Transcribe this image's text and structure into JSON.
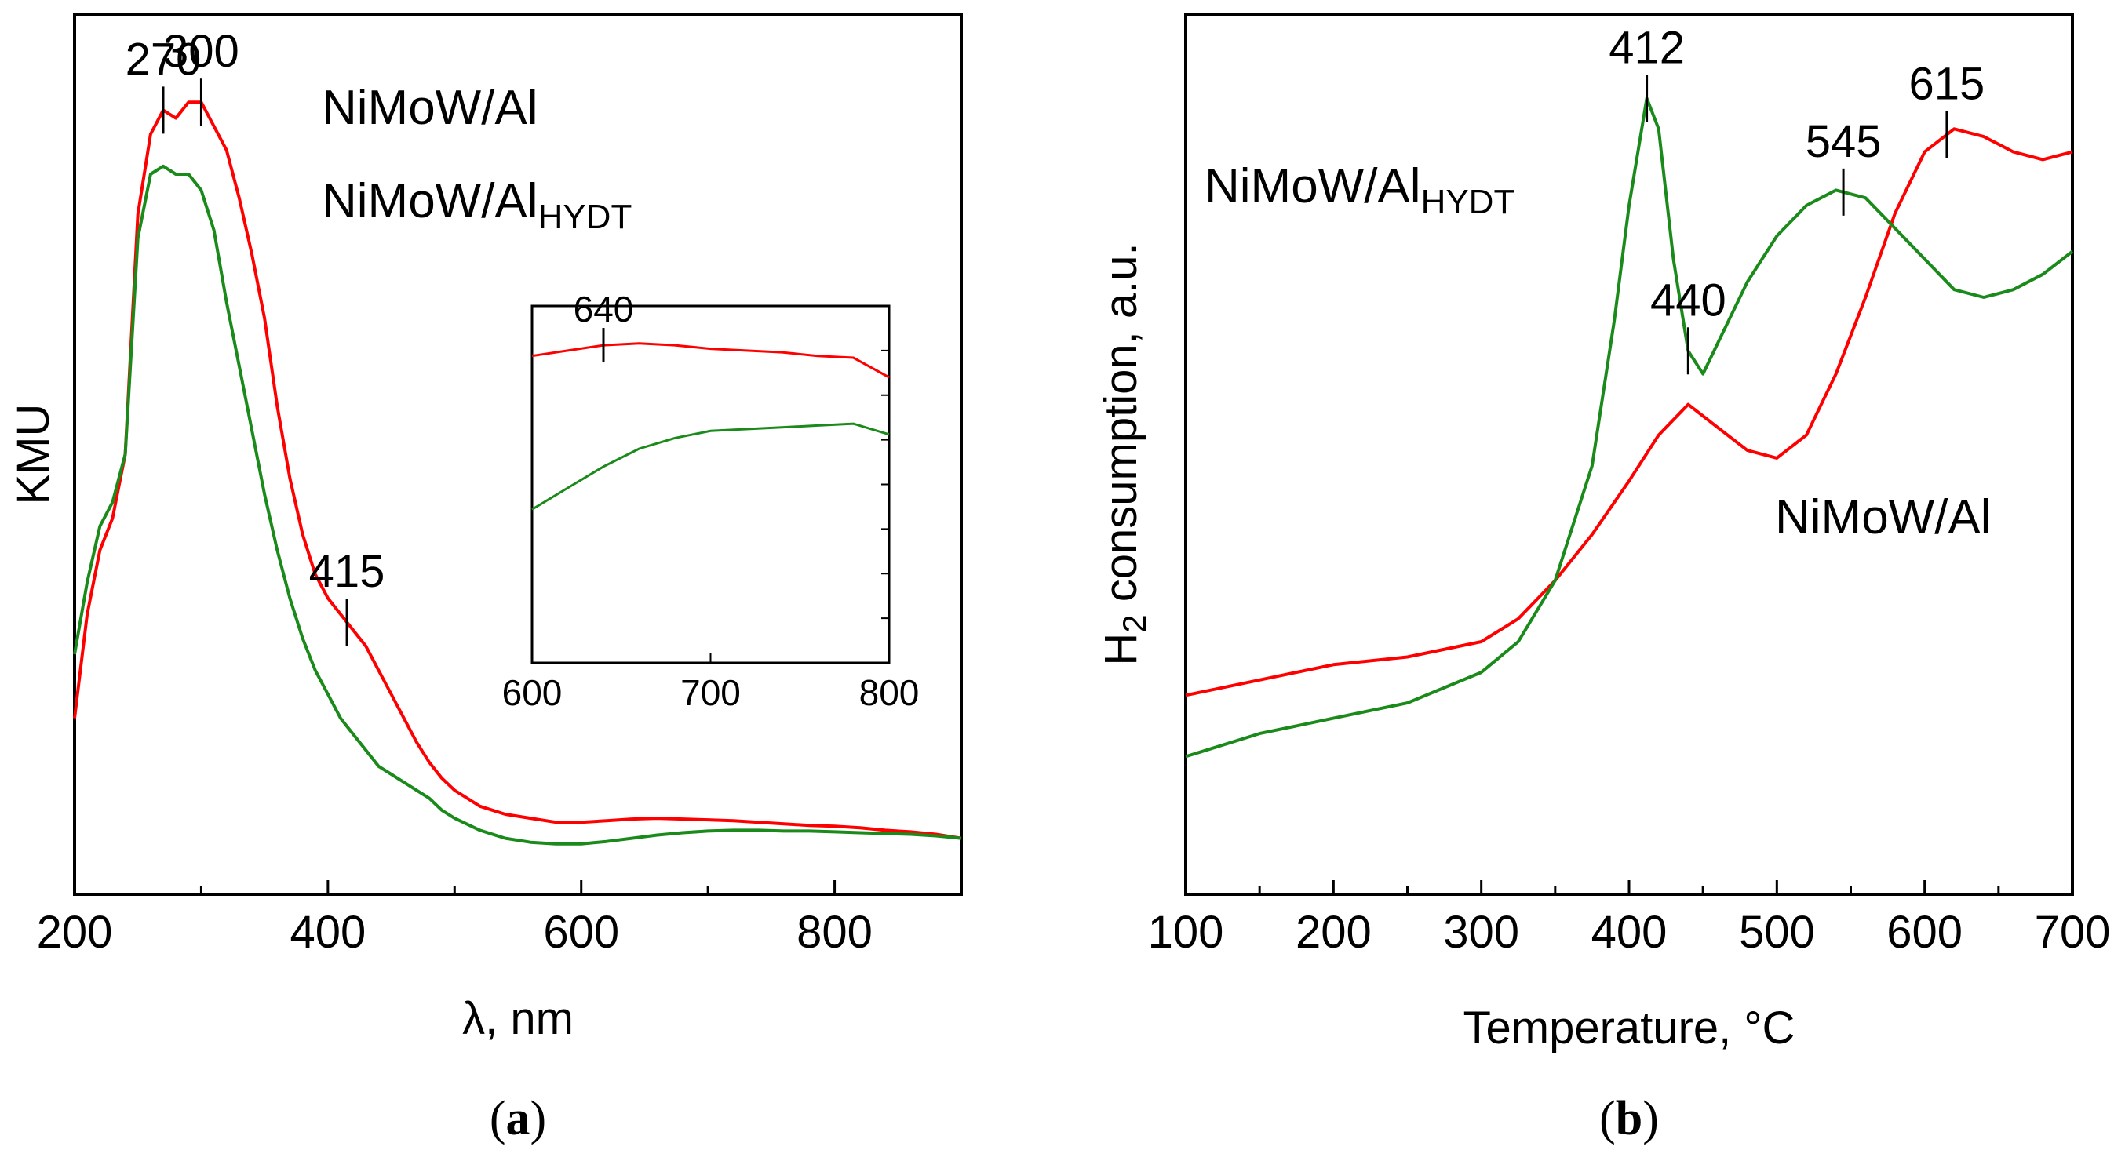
{
  "chart_data": [
    {
      "id": "a",
      "type": "line",
      "caption": "a",
      "xlabel": "λ, nm",
      "ylabel": "KMU",
      "xlim": [
        200,
        900
      ],
      "ylim": [
        0,
        1.1
      ],
      "xticks": [
        200,
        400,
        600,
        800
      ],
      "yticks_shown": false,
      "series": [
        {
          "name": "NiMoW/Al",
          "color": "#ff0000",
          "x": [
            200,
            210,
            220,
            230,
            240,
            250,
            260,
            270,
            280,
            290,
            300,
            310,
            320,
            330,
            340,
            350,
            360,
            370,
            380,
            390,
            400,
            410,
            420,
            430,
            440,
            450,
            460,
            470,
            480,
            490,
            500,
            520,
            540,
            560,
            580,
            600,
            620,
            640,
            660,
            680,
            700,
            720,
            740,
            760,
            780,
            800,
            820,
            840,
            860,
            880,
            900
          ],
          "y": [
            0.22,
            0.35,
            0.43,
            0.47,
            0.55,
            0.85,
            0.95,
            0.98,
            0.97,
            0.99,
            0.99,
            0.96,
            0.93,
            0.87,
            0.8,
            0.72,
            0.61,
            0.52,
            0.45,
            0.4,
            0.37,
            0.35,
            0.33,
            0.31,
            0.28,
            0.25,
            0.22,
            0.19,
            0.165,
            0.145,
            0.13,
            0.11,
            0.1,
            0.095,
            0.09,
            0.09,
            0.092,
            0.094,
            0.095,
            0.094,
            0.093,
            0.092,
            0.09,
            0.088,
            0.086,
            0.085,
            0.083,
            0.08,
            0.078,
            0.075,
            0.07
          ]
        },
        {
          "name": "NiMoW/Al_HYDT",
          "color": "#1a8a1a",
          "x": [
            200,
            210,
            220,
            230,
            240,
            250,
            260,
            270,
            280,
            290,
            300,
            310,
            320,
            330,
            340,
            350,
            360,
            370,
            380,
            390,
            400,
            410,
            420,
            430,
            440,
            450,
            460,
            470,
            480,
            490,
            500,
            520,
            540,
            560,
            580,
            600,
            620,
            640,
            660,
            680,
            700,
            720,
            740,
            760,
            780,
            800,
            820,
            840,
            860,
            880,
            900
          ],
          "y": [
            0.3,
            0.39,
            0.46,
            0.49,
            0.55,
            0.82,
            0.9,
            0.91,
            0.9,
            0.9,
            0.88,
            0.83,
            0.74,
            0.66,
            0.58,
            0.5,
            0.43,
            0.37,
            0.32,
            0.28,
            0.25,
            0.22,
            0.2,
            0.18,
            0.16,
            0.15,
            0.14,
            0.13,
            0.12,
            0.105,
            0.095,
            0.08,
            0.07,
            0.065,
            0.063,
            0.063,
            0.066,
            0.07,
            0.074,
            0.077,
            0.079,
            0.08,
            0.08,
            0.079,
            0.079,
            0.078,
            0.077,
            0.076,
            0.075,
            0.073,
            0.07
          ]
        }
      ],
      "annotations": [
        {
          "text": "270",
          "x": 270
        },
        {
          "text": "300",
          "x": 300
        },
        {
          "text": "415",
          "x": 415
        }
      ],
      "legend": [
        {
          "text": "NiMoW/Al",
          "sub": "",
          "color": "#ff0000"
        },
        {
          "text": "NiMoW/Al",
          "sub": "HYDT",
          "color": "#1a8a1a"
        }
      ],
      "inset": {
        "xlim": [
          600,
          800
        ],
        "ylim": [
          0,
          1
        ],
        "xticks": [
          600,
          700,
          800
        ],
        "annotation": {
          "text": "640",
          "x": 640
        },
        "series": [
          {
            "name": "NiMoW/Al",
            "x": [
              600,
              620,
              640,
              660,
              680,
              700,
              720,
              740,
              760,
              780,
              800
            ],
            "y": [
              0.86,
              0.875,
              0.89,
              0.895,
              0.89,
              0.88,
              0.875,
              0.87,
              0.86,
              0.855,
              0.8
            ]
          },
          {
            "name": "NiMoW/Al_HYDT",
            "x": [
              600,
              620,
              640,
              660,
              680,
              700,
              720,
              740,
              760,
              780,
              800
            ],
            "y": [
              0.43,
              0.49,
              0.55,
              0.6,
              0.63,
              0.65,
              0.655,
              0.66,
              0.665,
              0.67,
              0.64
            ]
          }
        ]
      }
    },
    {
      "id": "b",
      "type": "line",
      "caption": "b",
      "xlabel": "Temperature, °C",
      "ylabel": "H",
      "ylabel_sub": "2",
      "ylabel_rest": " consumption, a.u.",
      "xlim": [
        100,
        700
      ],
      "ylim": [
        0,
        1.15
      ],
      "xticks": [
        100,
        200,
        300,
        400,
        500,
        600,
        700
      ],
      "yticks_shown": false,
      "series": [
        {
          "name": "NiMoW/Al",
          "color": "#ff0000",
          "x": [
            100,
            150,
            200,
            250,
            300,
            325,
            350,
            375,
            400,
            420,
            440,
            460,
            480,
            500,
            520,
            540,
            560,
            580,
            600,
            620,
            640,
            660,
            680,
            700
          ],
          "y": [
            0.26,
            0.28,
            0.3,
            0.31,
            0.33,
            0.36,
            0.41,
            0.47,
            0.54,
            0.6,
            0.64,
            0.61,
            0.58,
            0.57,
            0.6,
            0.68,
            0.78,
            0.89,
            0.97,
            1.0,
            0.99,
            0.97,
            0.96,
            0.97
          ]
        },
        {
          "name": "NiMoW/Al_HYDT",
          "color": "#1a8a1a",
          "x": [
            100,
            150,
            200,
            250,
            300,
            325,
            350,
            375,
            390,
            400,
            412,
            420,
            430,
            440,
            450,
            460,
            480,
            500,
            520,
            540,
            560,
            580,
            600,
            620,
            640,
            660,
            680,
            700
          ],
          "y": [
            0.18,
            0.21,
            0.23,
            0.25,
            0.29,
            0.33,
            0.41,
            0.56,
            0.75,
            0.9,
            1.04,
            1.0,
            0.83,
            0.71,
            0.68,
            0.72,
            0.8,
            0.86,
            0.9,
            0.92,
            0.91,
            0.87,
            0.83,
            0.79,
            0.78,
            0.79,
            0.81,
            0.84
          ]
        }
      ],
      "annotations": [
        {
          "text": "412",
          "x": 412
        },
        {
          "text": "440",
          "x": 440
        },
        {
          "text": "545",
          "x": 545
        },
        {
          "text": "615",
          "x": 615
        }
      ],
      "legend": [
        {
          "text": "NiMoW/Al",
          "sub": "HYDT",
          "color": "#1a8a1a"
        },
        {
          "text": "NiMoW/Al",
          "sub": "",
          "color": "#ff0000"
        }
      ]
    }
  ]
}
